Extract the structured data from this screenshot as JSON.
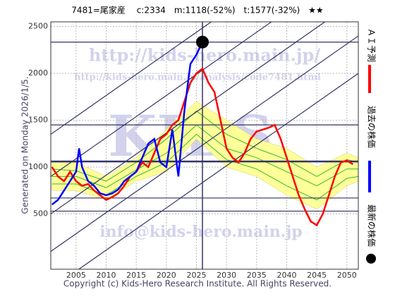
{
  "chart_data": {
    "type": "line",
    "title": "7481=尾家産　 c:2334　m:1118(-52%)　t:1577(-32%)　★★",
    "side_note": "Generated on Monday 2026/1/5.",
    "footer": "Copyright (c) Kids-Hero Research Institute. All Rights Reserved.",
    "annotations": [
      "http://kids-hero.main.jp/",
      "http://kids-hero.main.jp/analysis/code7481.html",
      "KIDS",
      "info@kids-hero.main.jp"
    ],
    "xlim": [
      2000.8,
      2051.9
    ],
    "ylim": [
      -90,
      2550
    ],
    "xticks": [
      2005,
      2010,
      2015,
      2020,
      2025,
      2030,
      2035,
      2040,
      2045,
      2050
    ],
    "yticks": [
      500,
      1000,
      1500,
      2000,
      2500
    ],
    "grid": true,
    "hlines": [
      2334,
      1450,
      1060,
      670,
      530
    ],
    "vline": 2026,
    "trend_lines": [
      [
        2000.8,
        1350,
        2051.9,
        3650
      ],
      [
        2000.8,
        900,
        2051.9,
        3200
      ],
      [
        2000.8,
        500,
        2051.9,
        2800
      ],
      [
        2000.8,
        100,
        2051.9,
        2400
      ],
      [
        2000.8,
        -300,
        2051.9,
        2000
      ]
    ],
    "band": {
      "color": "#ffff99",
      "x": [
        2001,
        2005,
        2010,
        2015,
        2020,
        2025,
        2030,
        2035,
        2040,
        2045,
        2050,
        2051.9
      ],
      "upper": [
        1050,
        1050,
        900,
        1100,
        1400,
        1700,
        1500,
        1300,
        1200,
        1000,
        1150,
        1100
      ],
      "lower": [
        750,
        750,
        650,
        850,
        950,
        1300,
        1000,
        900,
        700,
        550,
        800,
        850
      ]
    },
    "green_lines": [
      {
        "color": "#33bb33",
        "x": [
          2001,
          2005,
          2010,
          2015,
          2020,
          2025,
          2030,
          2035,
          2040,
          2045,
          2050,
          2051.9
        ],
        "values": [
          900,
          900,
          780,
          970,
          1150,
          1450,
          1200,
          1100,
          950,
          800,
          980,
          980
        ]
      },
      {
        "color": "#33bb33",
        "x": [
          2001,
          2005,
          2010,
          2015,
          2020,
          2025,
          2030,
          2035,
          2040,
          2045,
          2050,
          2051.9
        ],
        "values": [
          980,
          960,
          850,
          1050,
          1300,
          1600,
          1350,
          1200,
          1080,
          900,
          1080,
          1050
        ]
      },
      {
        "color": "#33bb33",
        "x": [
          2001,
          2005,
          2010,
          2015,
          2020,
          2025,
          2030,
          2035,
          2040,
          2045,
          2050,
          2051.9
        ],
        "values": [
          820,
          820,
          700,
          900,
          1050,
          1350,
          1080,
          980,
          800,
          650,
          880,
          900
        ]
      }
    ],
    "series": [
      {
        "name": "ＡＩ予測",
        "color": "#ff0000",
        "x": [
          2001,
          2002,
          2003,
          2004,
          2005,
          2006,
          2007,
          2008,
          2009,
          2010,
          2011,
          2012,
          2013,
          2014,
          2015,
          2016,
          2017,
          2018,
          2019,
          2020,
          2021,
          2022,
          2023,
          2024,
          2025,
          2026,
          2027,
          2028,
          2029,
          2030,
          2031,
          2032,
          2033,
          2034,
          2035,
          2036,
          2037,
          2038,
          2039,
          2040,
          2041,
          2042,
          2043,
          2044,
          2045,
          2046,
          2047,
          2048,
          2049,
          2050,
          2051
        ],
        "values": [
          1000,
          900,
          850,
          950,
          850,
          800,
          820,
          750,
          700,
          650,
          680,
          720,
          800,
          900,
          950,
          1050,
          1000,
          1150,
          1300,
          1350,
          1450,
          1500,
          1700,
          1900,
          2000,
          2050,
          1900,
          1800,
          1500,
          1200,
          1100,
          1050,
          1150,
          1300,
          1380,
          1400,
          1420,
          1450,
          1300,
          1100,
          900,
          700,
          550,
          420,
          380,
          500,
          700,
          900,
          1050,
          1070,
          1030
        ]
      },
      {
        "name": "過去の株価",
        "color": "#0000ff",
        "x": [
          2001,
          2002,
          2003,
          2004,
          2005,
          2005.5,
          2006,
          2007,
          2008,
          2009,
          2010,
          2011,
          2012,
          2013,
          2014,
          2015,
          2016,
          2017,
          2018,
          2019,
          2020,
          2021,
          2022,
          2023,
          2024,
          2025,
          2026
        ],
        "values": [
          600,
          650,
          750,
          850,
          950,
          1200,
          1000,
          850,
          800,
          720,
          700,
          720,
          760,
          850,
          900,
          950,
          1100,
          1250,
          1300,
          1050,
          1000,
          1400,
          900,
          1600,
          2100,
          2200,
          2334
        ]
      }
    ],
    "latest": {
      "name": "最新の株価",
      "color": "#000000",
      "x": 2026,
      "y": 2334
    }
  }
}
